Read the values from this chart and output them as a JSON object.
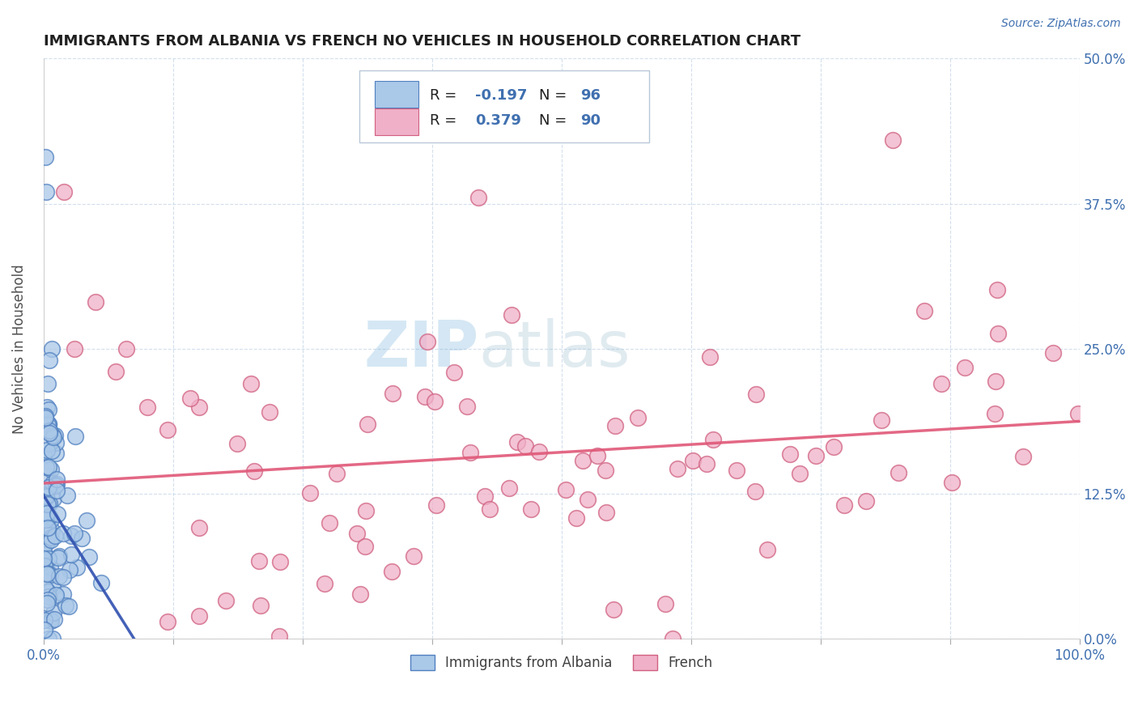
{
  "title": "IMMIGRANTS FROM ALBANIA VS FRENCH NO VEHICLES IN HOUSEHOLD CORRELATION CHART",
  "source": "Source: ZipAtlas.com",
  "ylabel_label": "No Vehicles in Household",
  "watermark_zip": "ZIP",
  "watermark_atlas": "atlas",
  "legend_labels": [
    "Immigrants from Albania",
    "French"
  ],
  "albania_R": -0.197,
  "albania_N": 96,
  "french_R": 0.379,
  "french_N": 90,
  "xlim": [
    0.0,
    100.0
  ],
  "ylim": [
    0.0,
    50.0
  ],
  "scatter_blue_color": "#aac8e8",
  "scatter_blue_edge": "#5080c0",
  "scatter_pink_color": "#f0b0c8",
  "scatter_pink_edge": "#d06080",
  "line_blue_color": "#3050b0",
  "line_pink_color": "#e05878",
  "background_color": "#ffffff",
  "grid_color": "#c8d8e8",
  "axis_color": "#4070b0",
  "ylabel_color": "#505050",
  "title_color": "#202020"
}
